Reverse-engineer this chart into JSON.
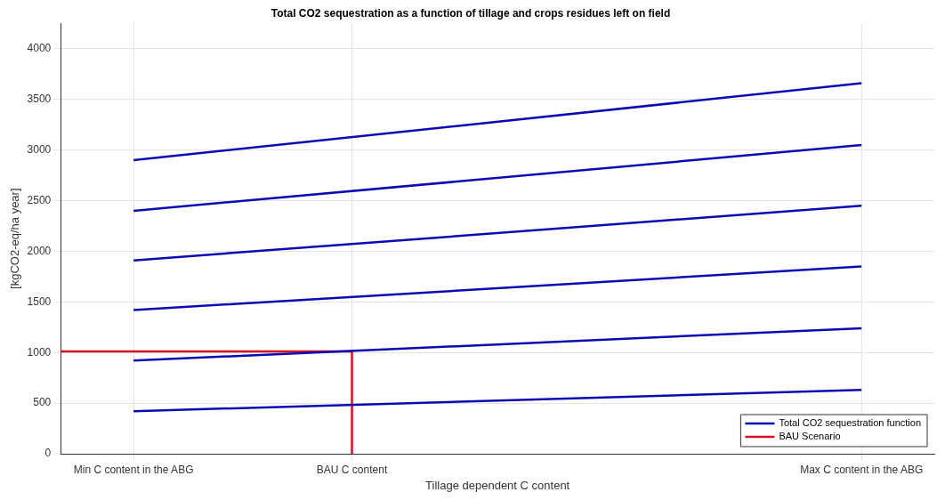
{
  "chart_data": {
    "type": "line",
    "title": "Total CO2 sequestration as a function of tillage and crops residues left on field",
    "xlabel": "Tillage dependent C content",
    "ylabel": "[kgCO2-eq/ha year]",
    "categories": [
      null,
      "Min C content in the ABG",
      null,
      null,
      "BAU C content",
      null,
      null,
      null,
      null,
      null,
      null,
      "Max C content in the ABG",
      null
    ],
    "ylim": [
      0,
      4250
    ],
    "yticks": [
      0,
      500,
      1000,
      1500,
      2000,
      2500,
      3000,
      3500,
      4000
    ],
    "grid": true,
    "legend": "bottom right",
    "marker": "none",
    "line_style": "solid",
    "ref_lines": [
      {
        "axis": "x",
        "value": "BAU C content",
        "color": "#d6121e"
      }
    ],
    "series": [
      {
        "name": "Total CO2 sequestration function",
        "color": "#0a0ab4",
        "values": [
          null,
          2900,
          null,
          null,
          null,
          null,
          null,
          null,
          null,
          null,
          null,
          3660,
          null
        ]
      },
      {
        "color": "#0a0ab4",
        "values": [
          null,
          2400,
          null,
          null,
          null,
          null,
          null,
          null,
          null,
          null,
          null,
          3050,
          null
        ]
      },
      {
        "color": "#0a0ab4",
        "values": [
          null,
          1910,
          null,
          null,
          null,
          null,
          null,
          null,
          null,
          null,
          null,
          2450,
          null
        ]
      },
      {
        "color": "#0a0ab4",
        "values": [
          null,
          1420,
          null,
          null,
          null,
          null,
          null,
          null,
          null,
          null,
          null,
          1850,
          null
        ]
      },
      {
        "color": "#0a0ab4",
        "values": [
          null,
          920,
          null,
          null,
          null,
          null,
          null,
          null,
          null,
          null,
          null,
          1240,
          null
        ]
      },
      {
        "color": "#0a0ab4",
        "values": [
          null,
          420,
          null,
          null,
          null,
          null,
          null,
          null,
          null,
          null,
          null,
          630,
          null
        ]
      },
      {
        "name": "BAU Scenario",
        "color": "#d6121e",
        "values": [
          1010,
          null,
          null,
          null,
          1010,
          null,
          null,
          null,
          null,
          null,
          null,
          null,
          null
        ]
      }
    ]
  }
}
